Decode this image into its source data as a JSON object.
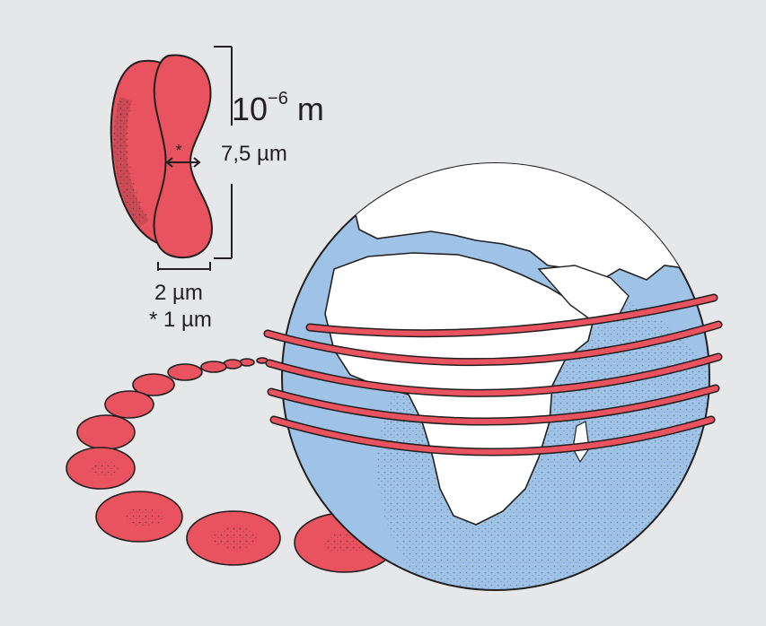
{
  "figure": {
    "scale_power_base": "10",
    "scale_exponent": "−6",
    "scale_unit": "m",
    "cell_height": "7,5 µm",
    "cell_width": "2 µm",
    "cell_thickness": "* 1 µm",
    "thickness_marker": "*"
  },
  "colors": {
    "background": "#e6e7e8",
    "cell_red": "#e8535f",
    "ocean_blue": "#9ec3e6",
    "land": "#ffffff",
    "outline": "#231f20"
  }
}
